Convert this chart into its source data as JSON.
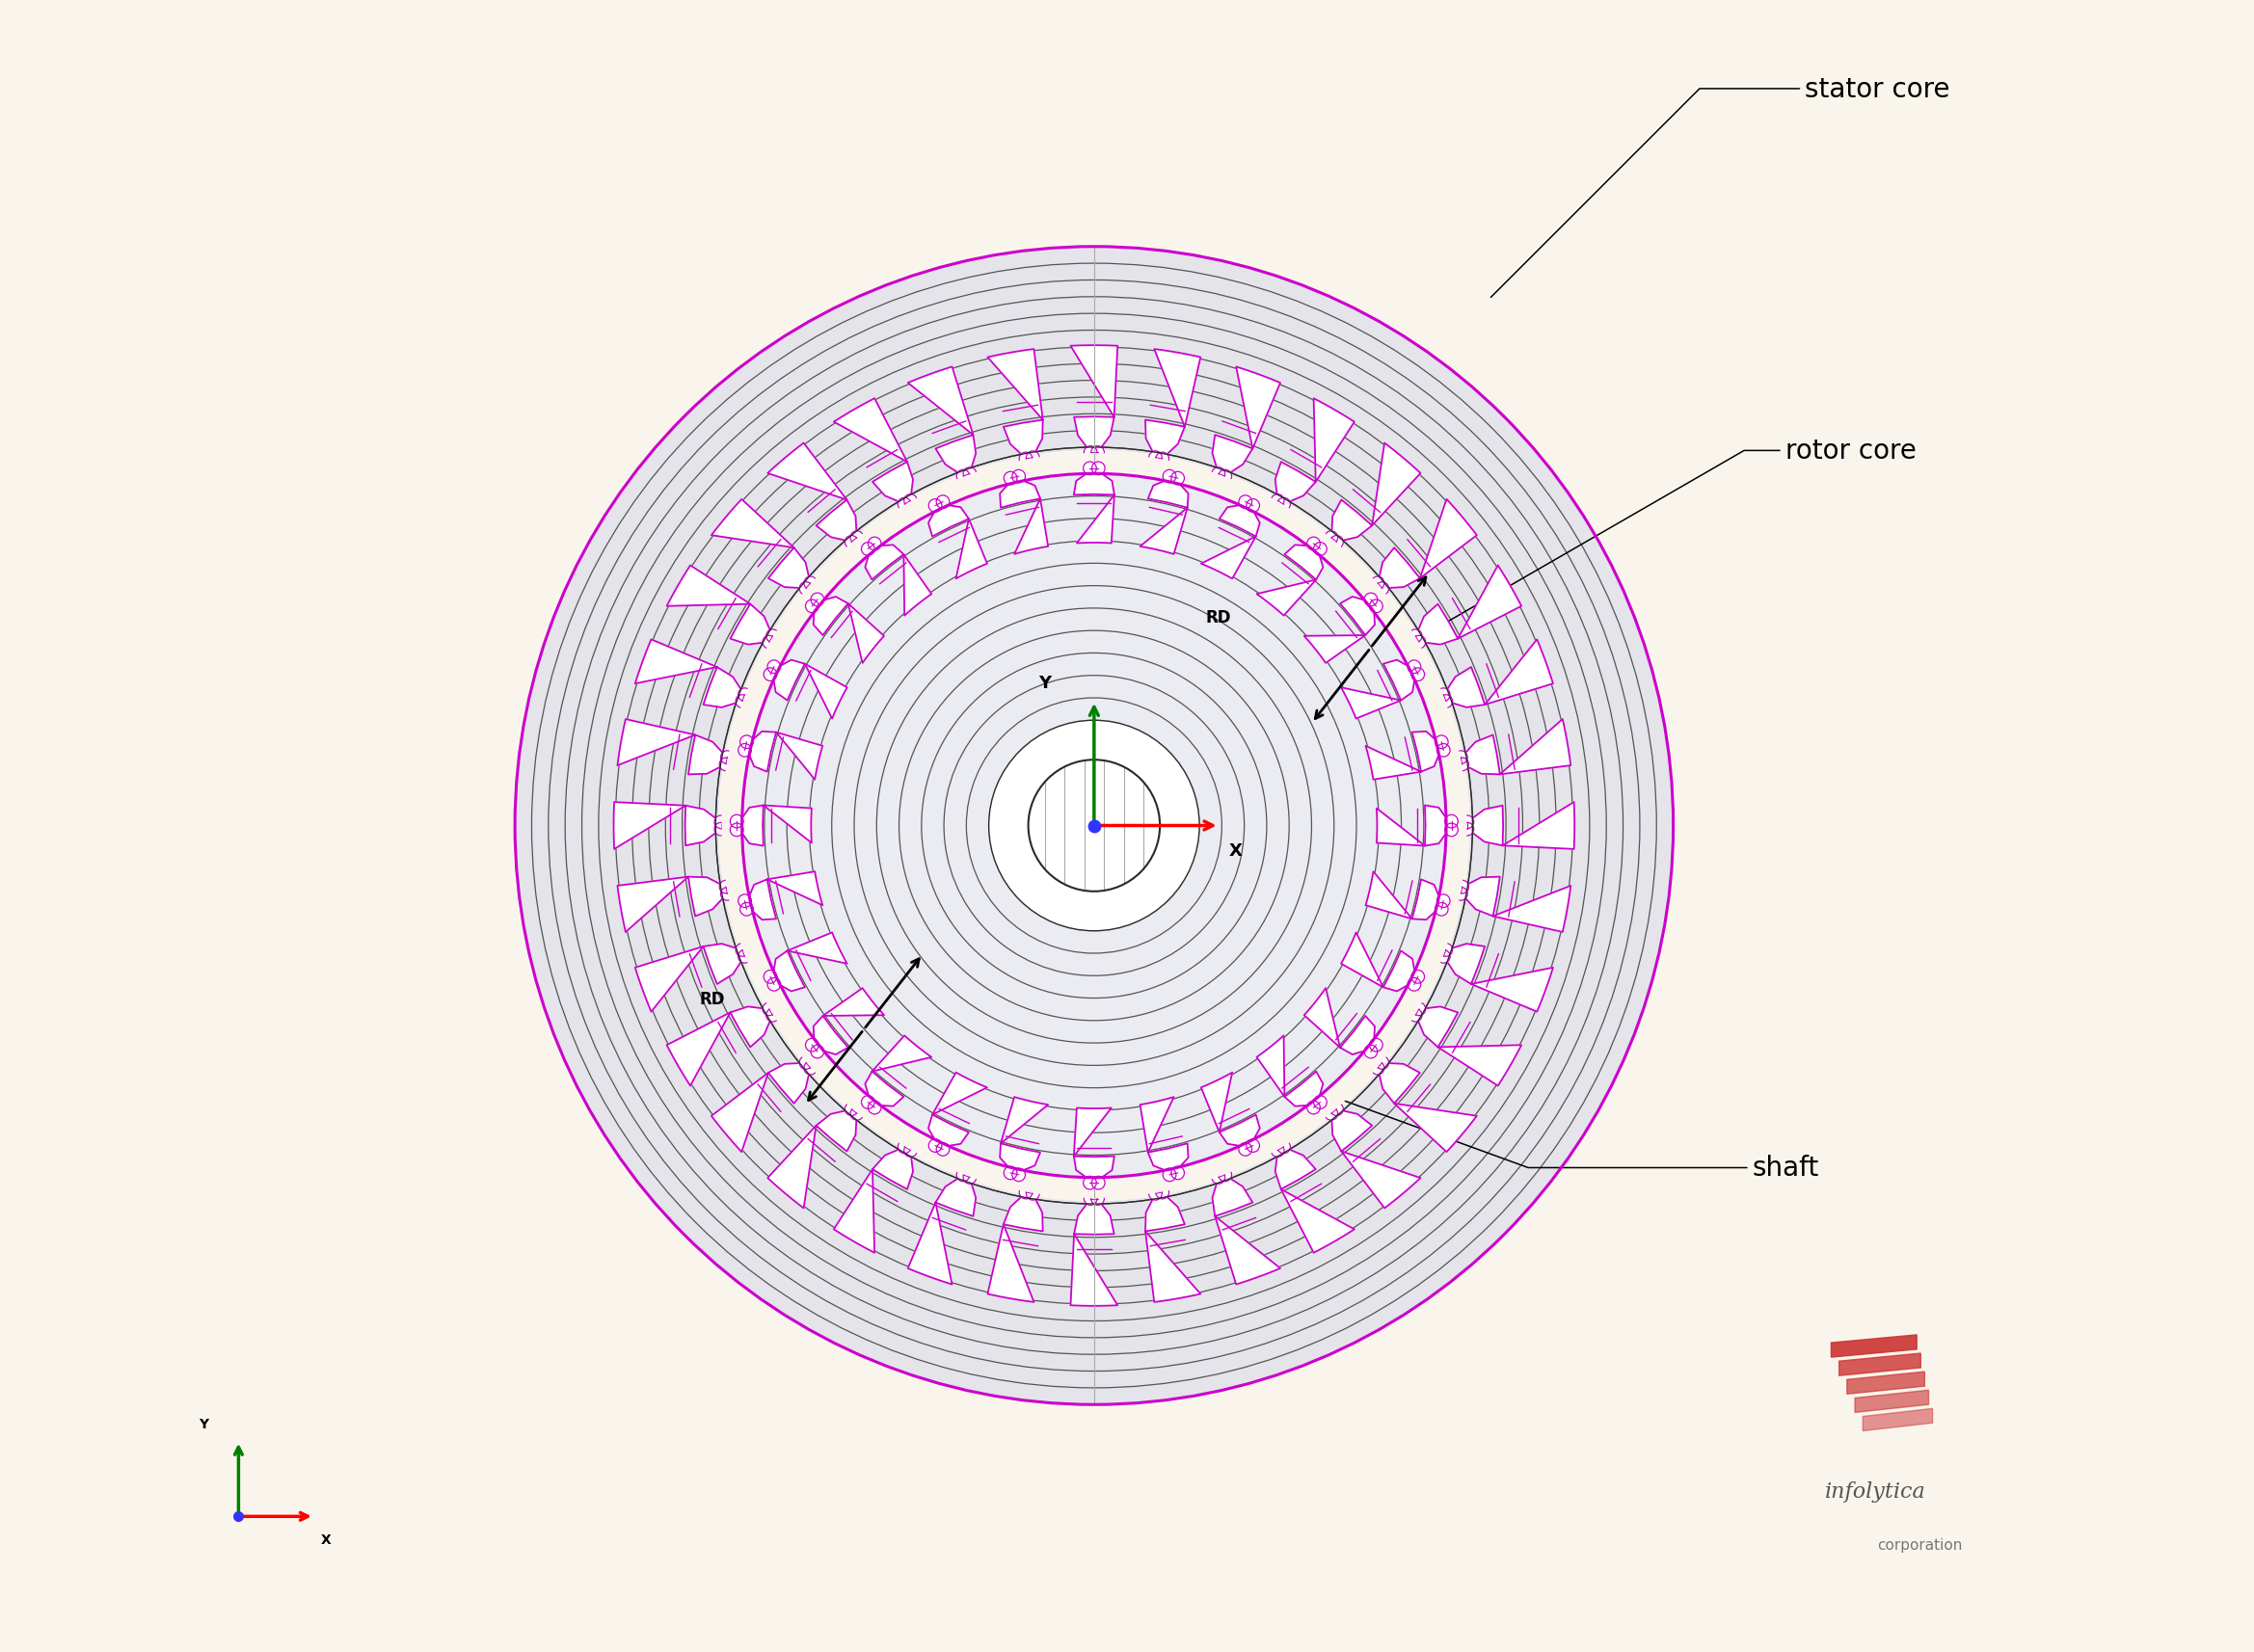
{
  "bg_color": "#FAF5EC",
  "stator_outer_r": 0.88,
  "stator_inner_r": 0.575,
  "rotor_outer_r": 0.535,
  "rotor_inner_r": 0.16,
  "shaft_r": 0.1,
  "stator_fill": "#E4E4EA",
  "rotor_fill": "#EBEBF2",
  "white_fill": "#FFFFFF",
  "stator_line_color": "#2A2A2A",
  "magenta_color": "#CC00CC",
  "contour_color": "#555555",
  "n_stator_slots": 36,
  "n_rotor_slots": 28,
  "n_stator_contours": 13,
  "n_rotor_contours": 12,
  "stator_slot_depth": 0.155,
  "stator_slot_hw": 0.068,
  "rotor_slot_depth": 0.105,
  "rotor_slot_hw": 0.072,
  "labels": {
    "stator_core": "stator core",
    "rotor_core": "rotor core",
    "shaft": "shaft",
    "RD": "RD"
  },
  "label_fontsize": 20,
  "small_fontsize": 11
}
